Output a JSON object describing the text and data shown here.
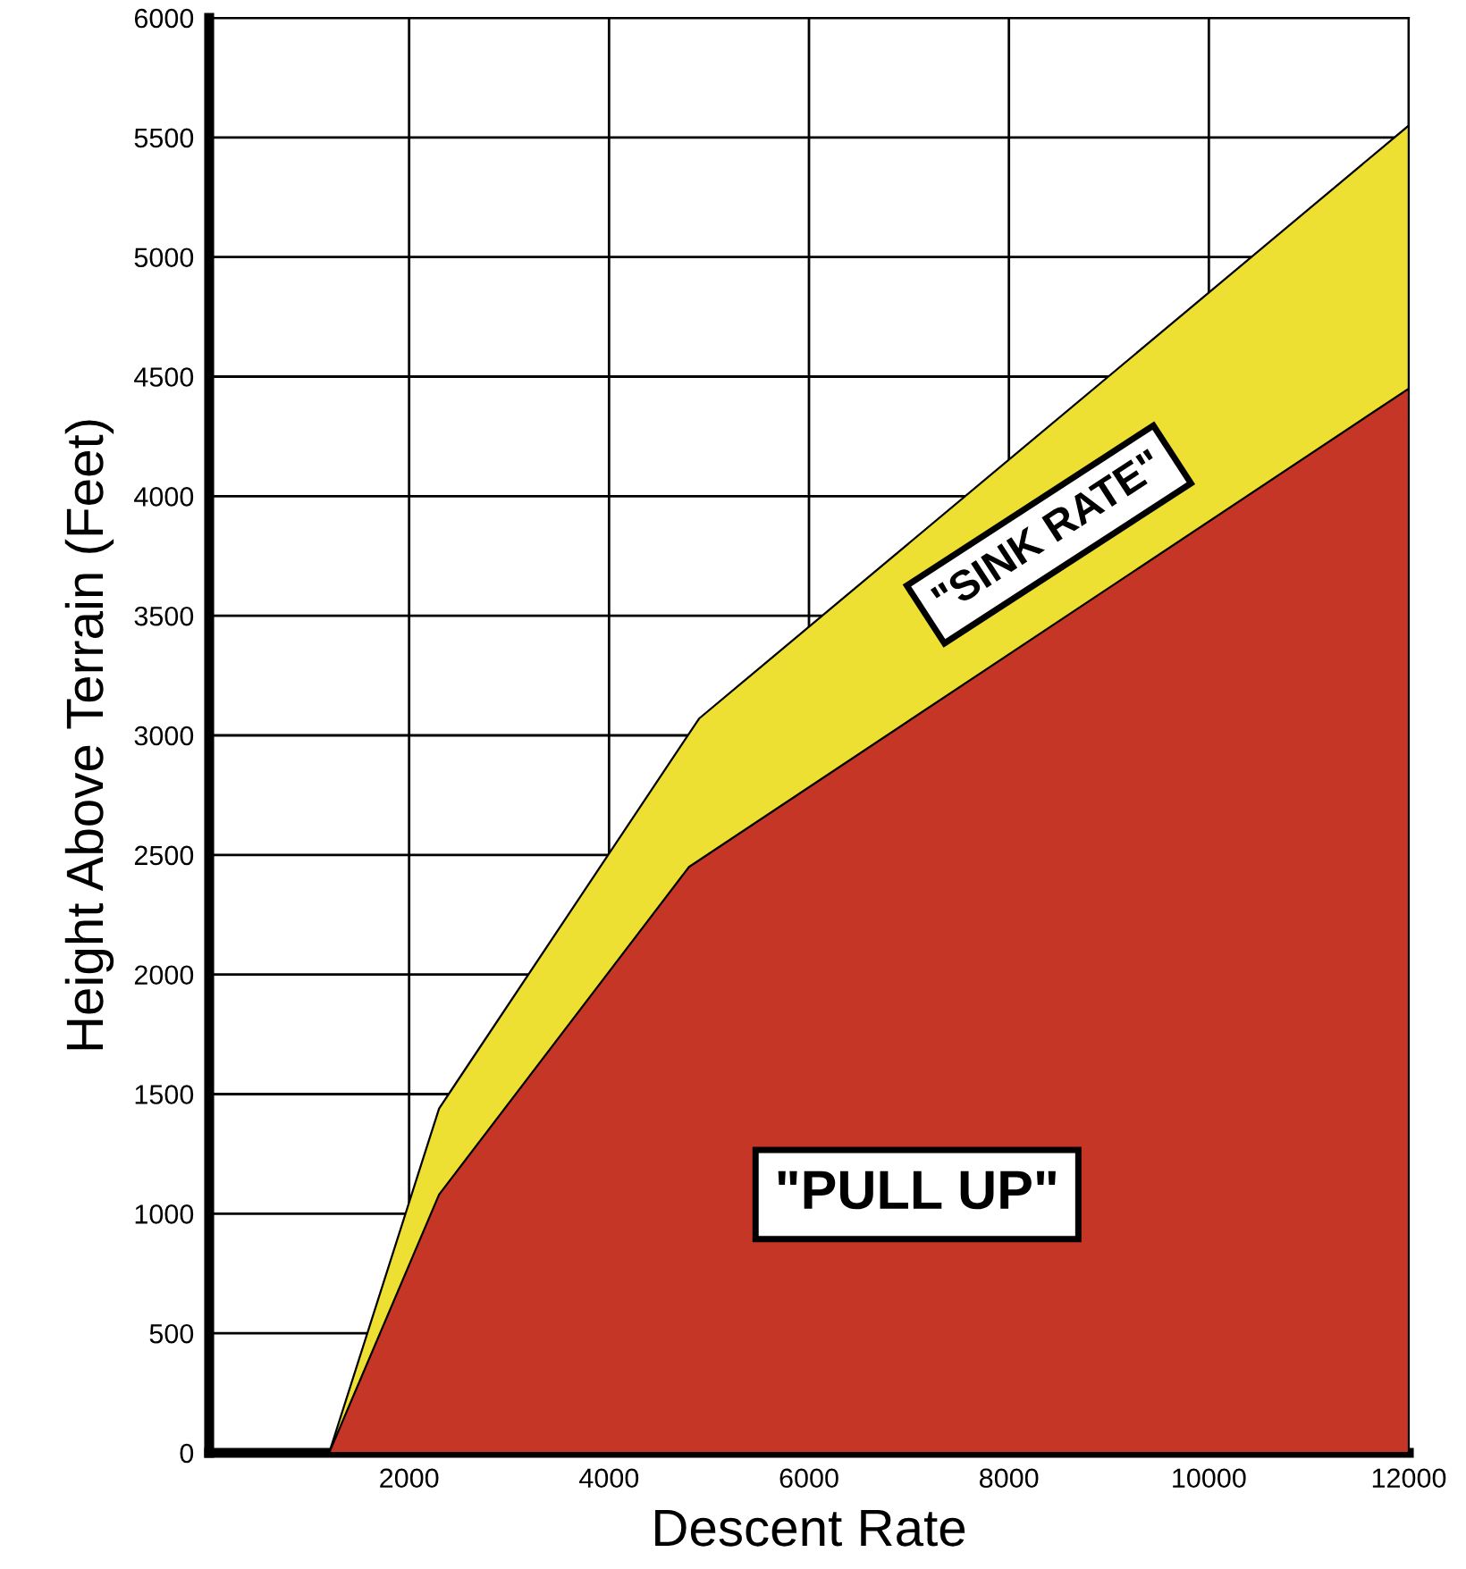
{
  "chart_data": {
    "type": "area",
    "xlabel": "Descent Rate",
    "ylabel": "Height Above Terrain (Feet)",
    "xlim": [
      0,
      12000
    ],
    "xticks": [
      2000,
      4000,
      6000,
      8000,
      10000,
      12000
    ],
    "ylim": [
      0,
      6000
    ],
    "yticks": [
      0,
      500,
      1000,
      1500,
      2000,
      2500,
      3000,
      3500,
      4000,
      4500,
      5000,
      5500,
      6000
    ],
    "grid": true,
    "series": [
      {
        "name": "\"SINK RATE\"",
        "color": "#ede032",
        "x": [
          1200,
          2300,
          4900,
          12000
        ],
        "values": [
          0,
          1440,
          3070,
          5550
        ]
      },
      {
        "name": "\"PULL UP\"",
        "color": "#c63627",
        "x": [
          1200,
          2300,
          4800,
          12000
        ],
        "values": [
          0,
          1080,
          2450,
          4450
        ]
      }
    ]
  }
}
